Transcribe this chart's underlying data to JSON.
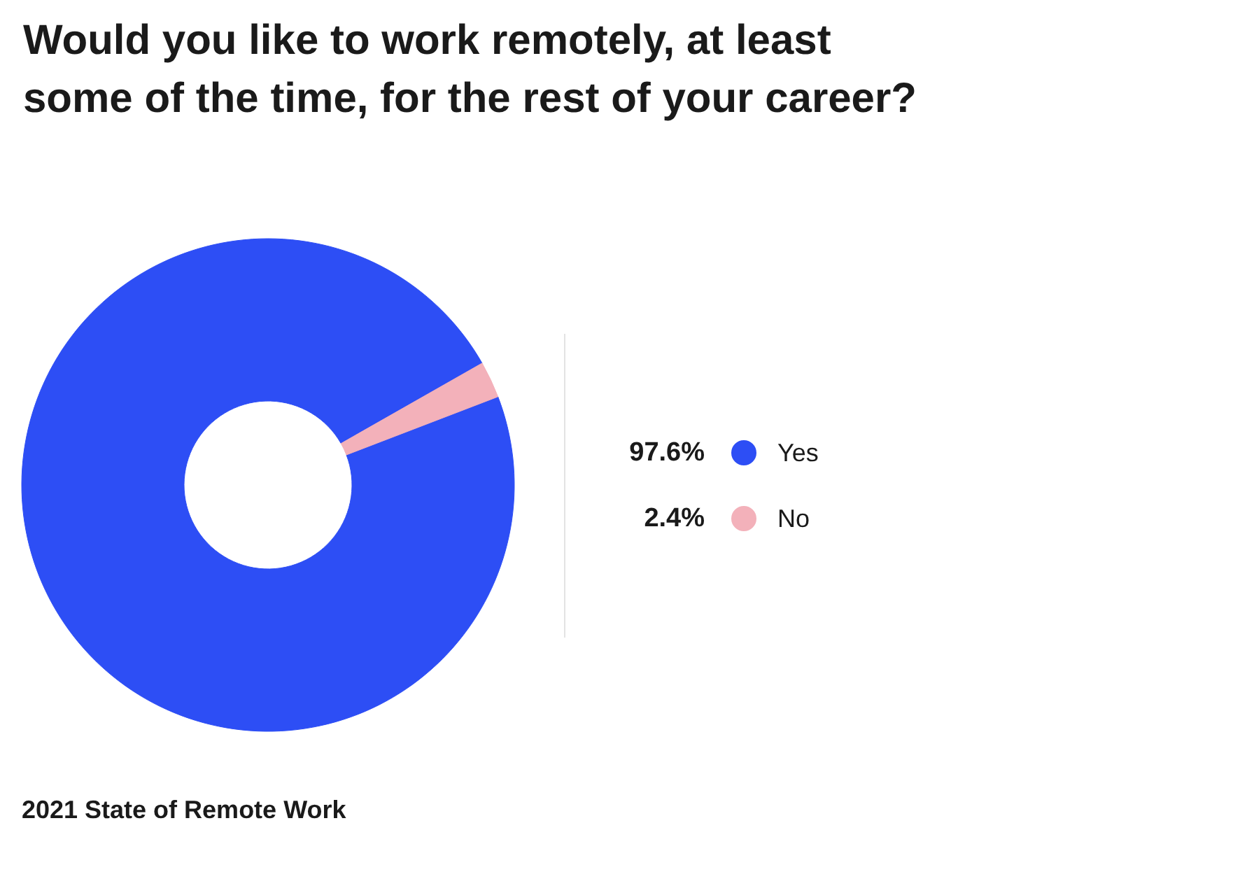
{
  "chart_data": {
    "type": "donut",
    "title": "Would you like to work remotely, at least some of the time, for the rest of your career?",
    "categories": [
      "Yes",
      "No"
    ],
    "values": [
      97.6,
      2.4
    ],
    "colors": [
      "#2d4ef5",
      "#f3b1ba"
    ],
    "value_labels": [
      "97.6%",
      "2.4%"
    ],
    "legend": "right",
    "annotations": [
      "2021 State of Remote Work"
    ]
  }
}
